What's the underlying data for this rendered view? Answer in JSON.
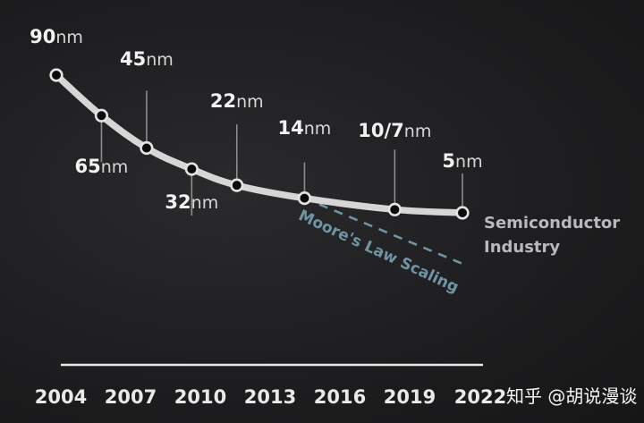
{
  "chart_data": {
    "type": "line",
    "x": [
      2004,
      2006,
      2008,
      2010,
      2012,
      2015,
      2019,
      2022
    ],
    "xlim": [
      2004,
      2022
    ],
    "ylim": [
      0,
      90
    ],
    "ticks": [
      "2004",
      "2007",
      "2010",
      "2013",
      "2016",
      "2019",
      "2022"
    ],
    "series": [
      {
        "name": "Semiconductor Industry",
        "color": "#d9d9d9",
        "nodes": [
          {
            "year": 2004,
            "num": "90",
            "unit": "nm"
          },
          {
            "year": 2006,
            "num": "65",
            "unit": "nm"
          },
          {
            "year": 2008,
            "num": "45",
            "unit": "nm"
          },
          {
            "year": 2010,
            "num": "32",
            "unit": "nm"
          },
          {
            "year": 2012,
            "num": "22",
            "unit": "nm"
          },
          {
            "year": 2015,
            "num": "14",
            "unit": "nm"
          },
          {
            "year": 2019,
            "num": "10/7",
            "unit": "nm"
          },
          {
            "year": 2022,
            "num": "5",
            "unit": "nm"
          }
        ]
      },
      {
        "name": "Moore's Law Scaling",
        "color": "#6f95a3",
        "style": "dashed"
      }
    ],
    "series_label_lines": [
      "Semiconductor",
      "Industry"
    ]
  },
  "watermark": "知乎 @胡说漫谈"
}
